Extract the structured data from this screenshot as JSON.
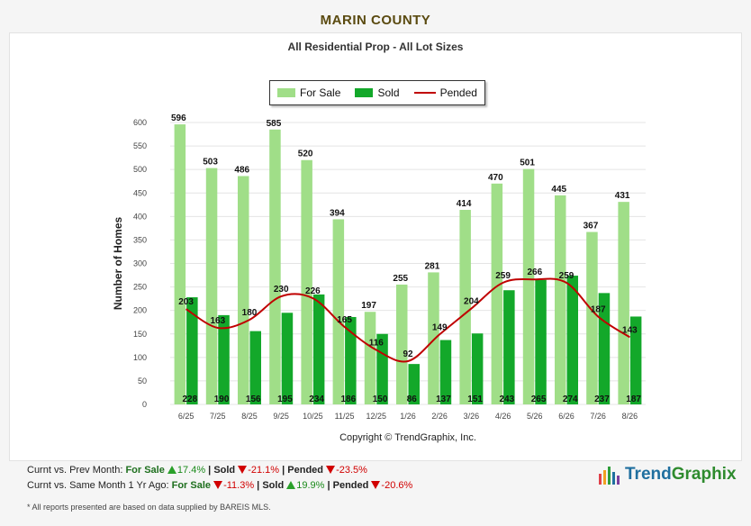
{
  "page_title": "MARIN COUNTY",
  "chart_data": {
    "type": "bar",
    "title": "All Residential Prop - All Lot Sizes",
    "ylabel": "Number of Homes",
    "xlabel": "",
    "ylim": [
      0,
      600
    ],
    "yticks": [
      0,
      50,
      100,
      150,
      200,
      250,
      300,
      350,
      400,
      450,
      500,
      550,
      600
    ],
    "categories": [
      "6/25",
      "7/25",
      "8/25",
      "9/25",
      "10/25",
      "11/25",
      "12/25",
      "1/26",
      "2/26",
      "3/26",
      "4/26",
      "5/26",
      "6/26",
      "7/26",
      "8/26"
    ],
    "series": [
      {
        "name": "For Sale",
        "kind": "bar",
        "color": "#a0de88",
        "values": [
          596,
          503,
          486,
          585,
          520,
          394,
          197,
          255,
          281,
          414,
          470,
          501,
          445,
          367,
          431
        ]
      },
      {
        "name": "Sold",
        "kind": "bar",
        "color": "#13a82a",
        "values": [
          228,
          190,
          156,
          195,
          234,
          186,
          150,
          86,
          137,
          151,
          243,
          265,
          274,
          237,
          187
        ]
      },
      {
        "name": "Pended",
        "kind": "line",
        "color": "#c00000",
        "values": [
          203,
          163,
          180,
          230,
          226,
          165,
          116,
          92,
          149,
          204,
          259,
          266,
          259,
          187,
          143
        ]
      }
    ],
    "legend": "top-center",
    "grid": true,
    "copyright": "Copyright © TrendGraphix, Inc."
  },
  "footer": {
    "line1": {
      "prefix": "Curnt vs. Prev Month:",
      "items": [
        {
          "label": "For Sale",
          "value": "17.4%",
          "direction": "up"
        },
        {
          "label": "Sold",
          "value": "-21.1%",
          "direction": "down"
        },
        {
          "label": "Pended",
          "value": "-23.5%",
          "direction": "down"
        }
      ]
    },
    "line2": {
      "prefix": "Curnt vs. Same Month 1 Yr Ago:",
      "items": [
        {
          "label": "For Sale",
          "value": "-11.3%",
          "direction": "down"
        },
        {
          "label": "Sold",
          "value": "19.9%",
          "direction": "up"
        },
        {
          "label": "Pended",
          "value": "-20.6%",
          "direction": "down"
        }
      ]
    },
    "separator": "|",
    "note": "* All reports presented are based on data supplied by BAREIS MLS."
  },
  "brand": {
    "name": "TrendGraphix",
    "icon": "trendgraphix-bars-icon"
  }
}
